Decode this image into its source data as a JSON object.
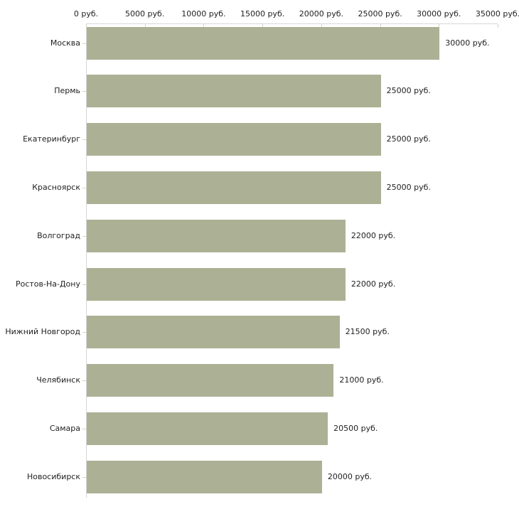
{
  "chart_data": {
    "type": "bar",
    "orientation": "horizontal",
    "title": "",
    "xlabel": "",
    "ylabel": "",
    "grid": false,
    "legend": "none",
    "categories": [
      "Москва",
      "Пермь",
      "Екатеринбург",
      "Красноярск",
      "Волгоград",
      "Ростов-На-Дону",
      "Нижний Новгород",
      "Челябинск",
      "Самара",
      "Новосибирск"
    ],
    "values": [
      30000,
      25000,
      25000,
      25000,
      22000,
      22000,
      21500,
      21000,
      20500,
      20000
    ],
    "value_labels": [
      "30000 руб.",
      "25000 руб.",
      "25000 руб.",
      "25000 руб.",
      "22000 руб.",
      "22000 руб.",
      "21500 руб.",
      "21000 руб.",
      "20500 руб.",
      "20000 руб."
    ],
    "x_axis": {
      "position": "top",
      "xlim": [
        0,
        35000
      ],
      "tick_step": 5000,
      "tick_labels": [
        "0 руб.",
        "5000 руб.",
        "10000 руб.",
        "15000 руб.",
        "20000 руб.",
        "25000 руб.",
        "30000 руб.",
        "35000 руб."
      ]
    },
    "colors": {
      "bar": "#acb195",
      "axis_line": "#d6d6d6",
      "tick": "#d5d5bb",
      "text": "#1f1f1f",
      "background": "#ffffff"
    }
  }
}
